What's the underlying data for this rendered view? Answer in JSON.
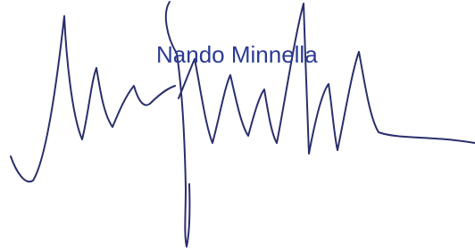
{
  "name": "Nando Minnella"
}
